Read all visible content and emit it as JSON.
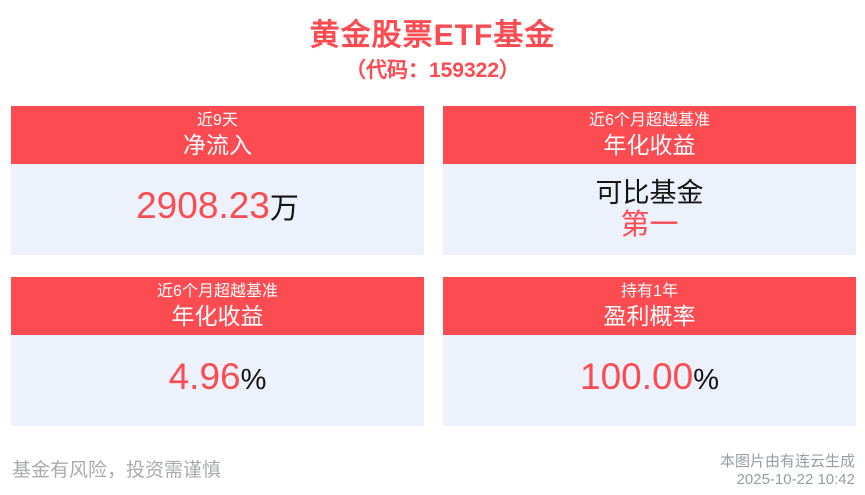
{
  "header": {
    "title": "黄金股票ETF基金",
    "subtitle": "（代码：159322）"
  },
  "cards": [
    {
      "period": "近9天",
      "metric": "净流入",
      "value": "2908.23",
      "unit": "万"
    },
    {
      "period": "近6个月超越基准",
      "metric": "年化收益",
      "value_black": "可比基金",
      "value_red": "第一"
    },
    {
      "period": "近6个月超越基准",
      "metric": "年化收益",
      "value": "4.96",
      "unit": "%"
    },
    {
      "period": "持有1年",
      "metric": "盈利概率",
      "value": "100.00",
      "unit": "%"
    }
  ],
  "footer": {
    "disclaimer": "基金有风险，投资需谨慎",
    "source": "本图片由有连云生成",
    "timestamp": "2025-10-22 10:42"
  },
  "colors": {
    "accent_red": "#FC4B51",
    "card_body_bg": "#ECF1FC",
    "value_dark": "#141414",
    "footer_gray": "#AAABAD"
  }
}
